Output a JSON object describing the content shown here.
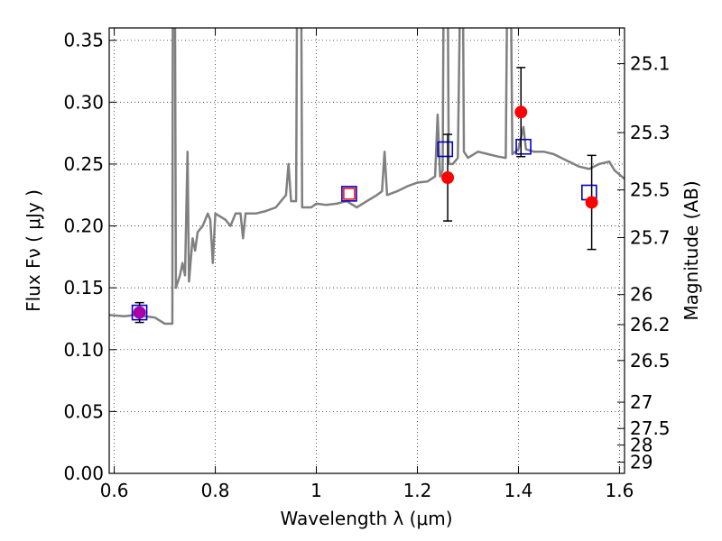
{
  "chart_data": {
    "type": "scatter",
    "xlabel": "Wavelength  λ (μm)",
    "ylabel": "Flux  Fν  ( μJy )",
    "ylabel_right": "Magnitude (AB)",
    "xlim": [
      0.59,
      1.61
    ],
    "ylim": [
      0.0,
      0.36
    ],
    "grid": true,
    "x_ticks": [
      {
        "value": 0.6,
        "label": "0.6"
      },
      {
        "value": 0.8,
        "label": "0.8"
      },
      {
        "value": 1.0,
        "label": "1"
      },
      {
        "value": 1.2,
        "label": "1.2"
      },
      {
        "value": 1.4,
        "label": "1.4"
      },
      {
        "value": 1.6,
        "label": "1.6"
      }
    ],
    "y_ticks": [
      {
        "value": 0.0,
        "label": "0.00"
      },
      {
        "value": 0.05,
        "label": "0.05"
      },
      {
        "value": 0.1,
        "label": "0.10"
      },
      {
        "value": 0.15,
        "label": "0.15"
      },
      {
        "value": 0.2,
        "label": "0.20"
      },
      {
        "value": 0.25,
        "label": "0.25"
      },
      {
        "value": 0.3,
        "label": "0.30"
      },
      {
        "value": 0.35,
        "label": "0.35"
      }
    ],
    "mag_ticks": [
      {
        "value": 25.1,
        "label": "25.1"
      },
      {
        "value": 25.3,
        "label": "25.3"
      },
      {
        "value": 25.5,
        "label": "25.5"
      },
      {
        "value": 25.7,
        "label": "25.7"
      },
      {
        "value": 26.0,
        "label": "26"
      },
      {
        "value": 26.2,
        "label": "26.2"
      },
      {
        "value": 26.5,
        "label": "26.5"
      },
      {
        "value": 27.0,
        "label": "27"
      },
      {
        "value": 27.5,
        "label": "27.5"
      },
      {
        "value": 28.0,
        "label": "28"
      },
      {
        "value": 29.0,
        "label": "29"
      }
    ],
    "colors": {
      "spectrum": "#808080",
      "observed": "#ff0000",
      "model": "#0000cc",
      "errorbar": "#000000",
      "highlight": "#aa00aa"
    },
    "spectrum": [
      [
        0.59,
        0.128
      ],
      [
        0.62,
        0.127
      ],
      [
        0.64,
        0.128
      ],
      [
        0.66,
        0.127
      ],
      [
        0.68,
        0.126
      ],
      [
        0.7,
        0.121
      ],
      [
        0.715,
        0.121
      ],
      [
        0.716,
        0.4
      ],
      [
        0.72,
        0.4
      ],
      [
        0.722,
        0.15
      ],
      [
        0.73,
        0.16
      ],
      [
        0.735,
        0.17
      ],
      [
        0.74,
        0.16
      ],
      [
        0.745,
        0.26
      ],
      [
        0.748,
        0.155
      ],
      [
        0.755,
        0.19
      ],
      [
        0.76,
        0.18
      ],
      [
        0.765,
        0.195
      ],
      [
        0.775,
        0.2
      ],
      [
        0.785,
        0.21
      ],
      [
        0.79,
        0.205
      ],
      [
        0.795,
        0.17
      ],
      [
        0.8,
        0.21
      ],
      [
        0.82,
        0.205
      ],
      [
        0.83,
        0.2
      ],
      [
        0.84,
        0.21
      ],
      [
        0.85,
        0.21
      ],
      [
        0.855,
        0.19
      ],
      [
        0.86,
        0.21
      ],
      [
        0.88,
        0.21
      ],
      [
        0.9,
        0.212
      ],
      [
        0.92,
        0.215
      ],
      [
        0.93,
        0.22
      ],
      [
        0.94,
        0.225
      ],
      [
        0.945,
        0.25
      ],
      [
        0.95,
        0.22
      ],
      [
        0.96,
        0.22
      ],
      [
        0.962,
        0.4
      ],
      [
        0.97,
        0.4
      ],
      [
        0.972,
        0.215
      ],
      [
        0.99,
        0.215
      ],
      [
        1.0,
        0.218
      ],
      [
        1.02,
        0.217
      ],
      [
        1.04,
        0.218
      ],
      [
        1.06,
        0.22
      ],
      [
        1.08,
        0.215
      ],
      [
        1.1,
        0.22
      ],
      [
        1.12,
        0.225
      ],
      [
        1.13,
        0.228
      ],
      [
        1.135,
        0.26
      ],
      [
        1.14,
        0.225
      ],
      [
        1.16,
        0.228
      ],
      [
        1.18,
        0.232
      ],
      [
        1.2,
        0.235
      ],
      [
        1.22,
        0.236
      ],
      [
        1.235,
        0.24
      ],
      [
        1.24,
        0.29
      ],
      [
        1.245,
        0.24
      ],
      [
        1.25,
        0.245
      ],
      [
        1.252,
        0.4
      ],
      [
        1.26,
        0.4
      ],
      [
        1.262,
        0.25
      ],
      [
        1.27,
        0.25
      ],
      [
        1.28,
        0.255
      ],
      [
        1.285,
        0.4
      ],
      [
        1.29,
        0.4
      ],
      [
        1.292,
        0.26
      ],
      [
        1.3,
        0.255
      ],
      [
        1.32,
        0.26
      ],
      [
        1.34,
        0.258
      ],
      [
        1.36,
        0.256
      ],
      [
        1.375,
        0.255
      ],
      [
        1.378,
        0.4
      ],
      [
        1.385,
        0.4
      ],
      [
        1.388,
        0.258
      ],
      [
        1.4,
        0.262
      ],
      [
        1.41,
        0.28
      ],
      [
        1.415,
        0.262
      ],
      [
        1.43,
        0.26
      ],
      [
        1.45,
        0.26
      ],
      [
        1.47,
        0.258
      ],
      [
        1.5,
        0.252
      ],
      [
        1.52,
        0.248
      ],
      [
        1.54,
        0.246
      ],
      [
        1.56,
        0.25
      ],
      [
        1.58,
        0.252
      ],
      [
        1.59,
        0.245
      ],
      [
        1.61,
        0.238
      ]
    ],
    "observed": [
      {
        "x": 0.65,
        "y": 0.13,
        "err": 0.008,
        "highlight": true
      },
      {
        "x": 1.26,
        "y": 0.239,
        "err": 0.035
      },
      {
        "x": 1.405,
        "y": 0.292,
        "err": 0.036
      },
      {
        "x": 1.545,
        "y": 0.219,
        "err": 0.038
      }
    ],
    "model": [
      {
        "x": 0.65,
        "y": 0.13
      },
      {
        "x": 1.065,
        "y": 0.226
      },
      {
        "x": 1.255,
        "y": 0.262
      },
      {
        "x": 1.41,
        "y": 0.264
      },
      {
        "x": 1.54,
        "y": 0.227
      }
    ],
    "extra_red_square": {
      "x": 1.065,
      "y": 0.226
    }
  }
}
